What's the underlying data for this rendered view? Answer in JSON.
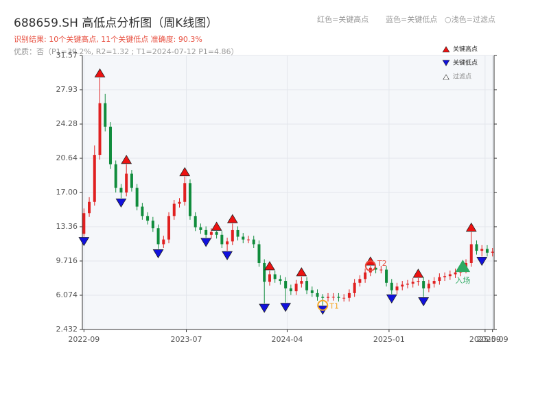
{
  "chart_data": {
    "type": "candlestick",
    "title": "688659.SH 高低点分析图（周K线图）",
    "subtitle": "识别结果: 10个关键高点, 11个关键低点  准确度: 90.3%",
    "quality": "优质：否（P1=39.2%, R2=1.32 ; T1=2024-07-12 P1=4.86）",
    "header_legend": [
      "红色=关键高点",
      "蓝色=关键低点",
      "○浅色=过滤点"
    ],
    "up_color": "#e02020",
    "down_color": "#108c3c",
    "grid": true,
    "xlim": [
      -0.3,
      77.3
    ],
    "ylim": [
      2.432,
      31.57
    ],
    "yticks": [
      2.432,
      6.074,
      9.716,
      13.36,
      {
        "value": 17,
        "label": "17.00"
      },
      20.64,
      24.28,
      27.93,
      31.57
    ],
    "xticks": [
      {
        "value": 0,
        "label": "2022-09"
      },
      {
        "value": 19.3,
        "label": "2023-07"
      },
      {
        "value": 38.3,
        "label": "2024-04"
      },
      {
        "value": 57.5,
        "label": "2025-01"
      },
      {
        "value": 75.6,
        "label": "2025-09"
      },
      {
        "value": 77,
        "label": "2025-09"
      }
    ],
    "open": [
      12.6,
      14.8,
      16.0,
      21.0,
      26.5,
      24.0,
      20.0,
      17.5,
      17.0,
      19.0,
      17.5,
      15.5,
      14.5,
      14.0,
      13.2,
      11.5,
      12.0,
      14.5,
      15.8,
      16.0,
      18.0,
      14.5,
      13.3,
      13.0,
      12.5,
      12.8,
      12.5,
      11.5,
      11.8,
      13.0,
      12.3,
      12.0,
      12.0,
      11.5,
      9.5,
      7.5,
      8.3,
      7.8,
      7.6,
      6.8,
      6.5,
      7.3,
      7.6,
      6.6,
      6.3,
      5.9,
      5.8,
      5.9,
      5.9,
      5.8,
      5.8,
      6.3,
      7.4,
      7.8,
      8.5,
      9.0,
      8.8,
      8.8,
      7.4,
      6.6,
      7.0,
      7.2,
      7.3,
      7.5,
      7.6,
      6.8,
      7.3,
      7.6,
      8.0,
      8.1,
      8.3,
      8.5,
      8.8,
      9.5,
      11.5,
      10.8,
      11.0,
      10.6
    ],
    "high": [
      15.3,
      16.5,
      22.0,
      29.2,
      27.5,
      24.5,
      20.4,
      17.9,
      20.0,
      19.4,
      17.9,
      15.9,
      14.9,
      14.4,
      13.6,
      12.4,
      14.9,
      16.2,
      16.4,
      18.7,
      18.4,
      14.9,
      13.7,
      13.4,
      13.2,
      12.9,
      12.9,
      12.2,
      13.7,
      13.4,
      12.7,
      12.4,
      12.4,
      11.9,
      9.9,
      8.7,
      8.7,
      8.2,
      8.0,
      7.2,
      7.7,
      8.05,
      8.0,
      7.0,
      6.7,
      6.2,
      6.3,
      6.3,
      6.3,
      6.2,
      6.7,
      7.8,
      8.2,
      8.9,
      9.2,
      9.1,
      9.2,
      9.2,
      7.8,
      7.4,
      7.6,
      7.7,
      7.9,
      7.9,
      8.0,
      7.7,
      8.0,
      8.4,
      8.5,
      8.7,
      8.9,
      9.2,
      9.9,
      12.8,
      11.9,
      11.4,
      11.4,
      11.1
    ],
    "low": [
      12.3,
      14.4,
      15.6,
      20.5,
      23.5,
      19.5,
      17.0,
      16.4,
      16.6,
      17.1,
      15.1,
      14.1,
      13.6,
      12.8,
      11.0,
      11.1,
      11.6,
      14.1,
      15.4,
      15.6,
      14.1,
      12.9,
      12.6,
      12.2,
      12.1,
      12.1,
      11.1,
      10.8,
      11.4,
      11.9,
      11.6,
      11.6,
      11.1,
      9.1,
      5.2,
      7.1,
      7.4,
      7.2,
      5.3,
      6.1,
      6.1,
      6.9,
      6.2,
      5.9,
      5.5,
      5.0,
      5.4,
      5.5,
      5.4,
      5.4,
      5.4,
      5.9,
      7.0,
      7.4,
      8.1,
      8.4,
      8.4,
      7.0,
      6.2,
      6.2,
      6.6,
      6.8,
      6.9,
      7.1,
      5.9,
      6.4,
      6.9,
      7.2,
      7.6,
      7.7,
      7.9,
      8.1,
      8.4,
      9.1,
      10.4,
      10.2,
      10.2,
      10.2
    ],
    "close": [
      14.8,
      16.0,
      21.0,
      26.5,
      24.0,
      20.0,
      17.5,
      17.0,
      19.0,
      17.5,
      15.5,
      14.5,
      14.0,
      13.2,
      11.5,
      12.0,
      14.5,
      15.8,
      16.0,
      18.0,
      14.5,
      13.3,
      13.0,
      12.5,
      12.8,
      12.5,
      11.5,
      11.8,
      13.0,
      12.3,
      12.0,
      12.0,
      11.5,
      9.5,
      7.5,
      8.3,
      7.8,
      7.6,
      6.8,
      6.5,
      7.3,
      7.6,
      6.6,
      6.3,
      5.9,
      5.8,
      5.9,
      5.9,
      5.8,
      5.8,
      6.3,
      7.4,
      7.8,
      8.5,
      9.0,
      8.8,
      8.8,
      7.4,
      6.6,
      7.0,
      7.2,
      7.3,
      7.5,
      7.6,
      6.8,
      7.3,
      7.6,
      8.0,
      8.1,
      8.3,
      8.5,
      8.8,
      9.5,
      11.5,
      10.8,
      11.0,
      10.6,
      10.7
    ],
    "series": [
      {
        "name": "关键高点",
        "color": "#ee1111",
        "kind": "high",
        "x": [
          3,
          8,
          19,
          25,
          28,
          35,
          41,
          54,
          63,
          73
        ],
        "values": [
          29.2,
          20.0,
          18.7,
          12.9,
          13.7,
          8.7,
          8.05,
          9.2,
          7.9,
          12.8
        ]
      },
      {
        "name": "关键低点",
        "color": "#1111dd",
        "kind": "low",
        "x": [
          0,
          7,
          14,
          23,
          27,
          34,
          38,
          45,
          58,
          64,
          75
        ],
        "values": [
          12.3,
          16.4,
          11.0,
          12.2,
          10.8,
          5.2,
          5.3,
          5.0,
          6.2,
          5.9,
          10.2
        ]
      }
    ],
    "filtered_label": "过滤点",
    "annotations": [
      {
        "text": "T1",
        "x": 45,
        "y": 5.0,
        "color": "#f5a623",
        "shape": "circle"
      },
      {
        "text": "T2",
        "x": 54,
        "y": 9.2,
        "color": "#e74c3c",
        "shape": "circle"
      },
      {
        "text": "入场",
        "x": 71.4,
        "y": 9.2,
        "color": "#2eaa62",
        "shape": "triangle"
      }
    ]
  }
}
